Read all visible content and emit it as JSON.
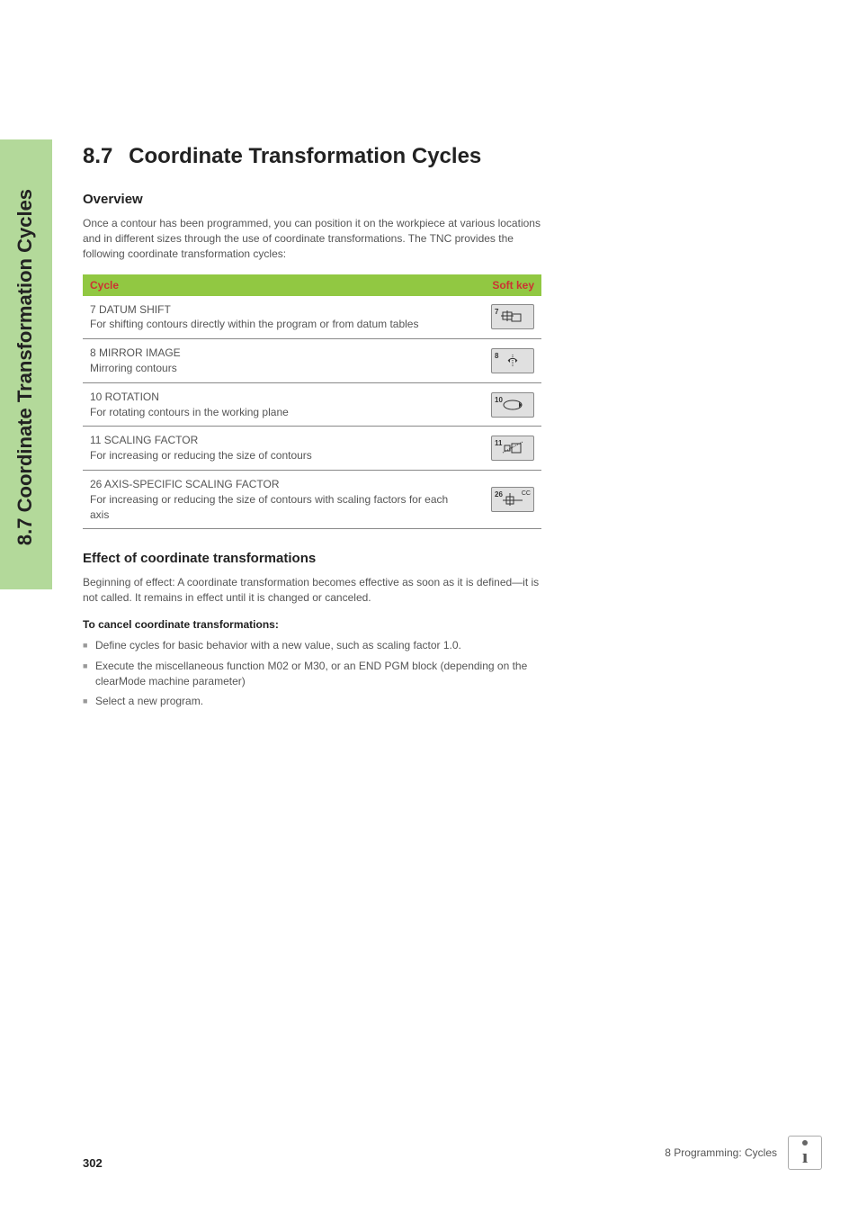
{
  "sidebar": {
    "label": "8.7 Coordinate Transformation Cycles"
  },
  "header": {
    "number": "8.7",
    "title": "Coordinate Transformation Cycles"
  },
  "overview": {
    "title": "Overview",
    "body": "Once a contour has been programmed, you can position it on the workpiece at various locations and in different sizes through the use of coordinate transformations. The TNC provides the following coordinate transformation cycles:"
  },
  "table": {
    "header_cycle": "Cycle",
    "header_softkey": "Soft key",
    "header_bg": "#91c842",
    "header_text_color": "#cc3333",
    "row_border_color": "#888888",
    "rows": [
      {
        "text": "7 DATUM SHIFT\nFor shifting contours directly within the program or from datum tables",
        "num": "7",
        "icon_type": "datum"
      },
      {
        "text": "8 MIRROR IMAGE\nMirroring contours",
        "num": "8",
        "icon_type": "mirror"
      },
      {
        "text": "10 ROTATION\nFor rotating contours in the working plane",
        "num": "10",
        "icon_type": "rotation"
      },
      {
        "text": "11 SCALING FACTOR\nFor increasing or reducing the size of contours",
        "num": "11",
        "icon_type": "scaling"
      },
      {
        "text": "26 AXIS-SPECIFIC SCALING FACTOR\nFor increasing or reducing the size of contours with scaling factors for each axis",
        "num": "26",
        "icon_type": "axis_scaling",
        "icon_extra": "CC"
      }
    ]
  },
  "effect": {
    "title": "Effect of coordinate transformations",
    "body": "Beginning of effect: A coordinate transformation becomes effective as soon as it is defined—it is not called. It remains in effect until it is changed or canceled.",
    "cancel_title": "To cancel coordinate transformations:",
    "bullets": [
      "Define cycles for basic behavior with a new value, such as scaling factor 1.0.",
      "Execute the miscellaneous function M02 or M30, or an END PGM block (depending on the clearMode machine parameter)",
      "Select a new program."
    ]
  },
  "footer": {
    "page": "302",
    "chapter": "8 Programming: Cycles"
  }
}
